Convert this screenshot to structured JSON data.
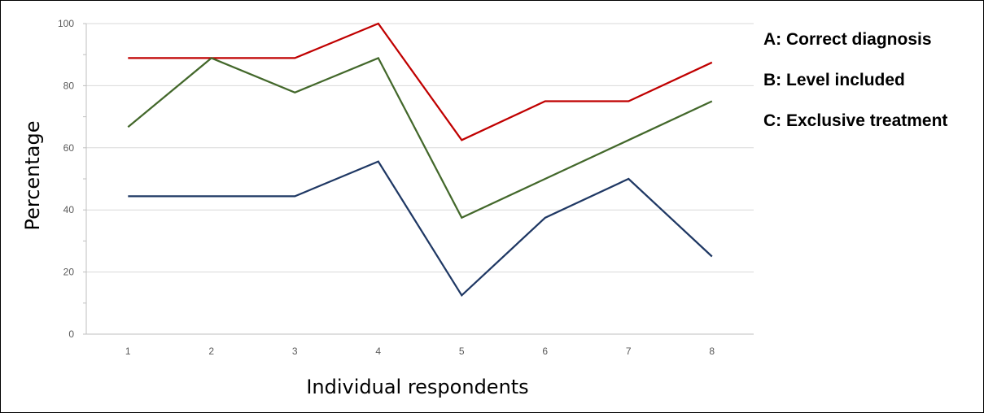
{
  "chart_data": {
    "type": "line",
    "title": "",
    "xlabel": "Individual respondents",
    "ylabel": "Percentage",
    "x": [
      "1",
      "2",
      "3",
      "4",
      "5",
      "6",
      "7",
      "8"
    ],
    "ylim": [
      0,
      100
    ],
    "yticks": [
      "0",
      "20",
      "40",
      "60",
      "80",
      "100"
    ],
    "grid": true,
    "legend_position": "right",
    "legend_labels": [
      "A: Correct diagnosis",
      "B: Level included",
      "C: Exclusive treatment"
    ],
    "series": [
      {
        "color": "#c00000",
        "values": [
          88.9,
          88.9,
          88.9,
          100,
          62.5,
          75,
          75,
          87.5
        ]
      },
      {
        "color": "#43682b",
        "values": [
          66.7,
          88.9,
          77.8,
          88.9,
          37.5,
          50,
          62.5,
          75
        ]
      },
      {
        "color": "#1f3864",
        "values": [
          44.4,
          44.4,
          44.4,
          55.6,
          12.5,
          37.5,
          50,
          25
        ]
      }
    ]
  }
}
